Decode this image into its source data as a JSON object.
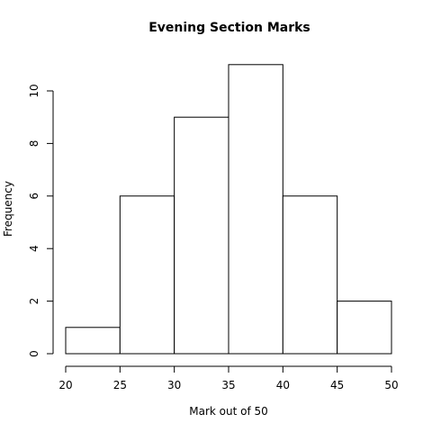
{
  "chart_data": {
    "type": "bar",
    "title": "Evening Section Marks",
    "xlabel": "Mark out of 50",
    "ylabel": "Frequency",
    "bins": [
      {
        "from": 20,
        "to": 25,
        "count": 1
      },
      {
        "from": 25,
        "to": 30,
        "count": 6
      },
      {
        "from": 30,
        "to": 35,
        "count": 9
      },
      {
        "from": 35,
        "to": 40,
        "count": 11
      },
      {
        "from": 40,
        "to": 45,
        "count": 6
      },
      {
        "from": 45,
        "to": 50,
        "count": 2
      }
    ],
    "x_ticks": [
      20,
      25,
      30,
      35,
      40,
      45,
      50
    ],
    "y_ticks": [
      0,
      2,
      4,
      6,
      8,
      10
    ],
    "xlim": [
      20,
      50
    ],
    "ylim": [
      0,
      11
    ],
    "grid": false,
    "bar_fill": "#ffffff",
    "bar_stroke": "#000000"
  }
}
